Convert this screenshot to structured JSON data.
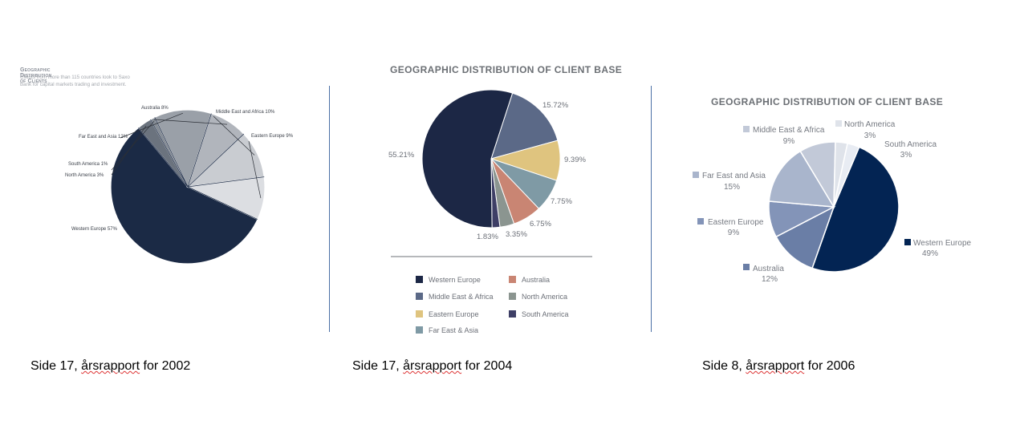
{
  "captions": {
    "c2002_pre": "Side 17, ",
    "c2002_word": "årsrapport",
    "c2002_post": " for 2002",
    "c2004_pre": "Side 17, ",
    "c2004_word": "årsrapport",
    "c2004_post": " for 2004",
    "c2006_pre": "Side 8, ",
    "c2006_word": "årsrapport",
    "c2006_post": " for 2006"
  },
  "chart_data": [
    {
      "type": "pie",
      "title": "Geographic Distribution of Clients",
      "subtitle": "Clients from more than 115 countries look to Saxo Bank for capital markets trading and investment.",
      "slices": [
        {
          "label": "Western Europe 57%",
          "value": 57,
          "color": "#1b2a45"
        },
        {
          "label": "North America 3%",
          "value": 3,
          "color": "#6b737e"
        },
        {
          "label": "South America 1%",
          "value": 1,
          "color": "#868d96"
        },
        {
          "label": "Far East and Asia 12%",
          "value": 12,
          "color": "#9aa0a8"
        },
        {
          "label": "Australia 8%",
          "value": 8,
          "color": "#b1b5bc"
        },
        {
          "label": "Middle East and Africa 10%",
          "value": 10,
          "color": "#c9ccd1"
        },
        {
          "label": "Eastern Europe 9%",
          "value": 9,
          "color": "#dcdee2"
        }
      ]
    },
    {
      "type": "pie",
      "title": "GEOGRAPHIC DISTRIBUTION OF CLIENT BASE",
      "slices": [
        {
          "name": "Western Europe",
          "label": "55.21%",
          "value": 55.21,
          "color": "#1c2745"
        },
        {
          "name": "Middle East & Africa",
          "label": "15.72%",
          "value": 15.72,
          "color": "#5b6987"
        },
        {
          "name": "Eastern Europe",
          "label": "9.39%",
          "value": 9.39,
          "color": "#dfc47f"
        },
        {
          "name": "Far East & Asia",
          "label": "7.75%",
          "value": 7.75,
          "color": "#7f9aa5"
        },
        {
          "name": "Australia",
          "label": "6.75%",
          "value": 6.75,
          "color": "#c98573"
        },
        {
          "name": "North America",
          "label": "3.35%",
          "value": 3.35,
          "color": "#8b9590"
        },
        {
          "name": "South America",
          "label": "1.83%",
          "value": 1.83,
          "color": "#3e3f66"
        }
      ],
      "legend": [
        "Western Europe",
        "Australia",
        "Middle East & Africa",
        "North America",
        "Eastern Europe",
        "South America",
        "Far East & Asia"
      ]
    },
    {
      "type": "pie",
      "title": "GEOGRAPHIC DISTRIBUTION OF CLIENT BASE",
      "slices": [
        {
          "name": "Western Europe",
          "pct": "49%",
          "value": 49,
          "color": "#032453"
        },
        {
          "name": "Australia",
          "pct": "12%",
          "value": 12,
          "color": "#6a7ea6"
        },
        {
          "name": "Eastern Europe",
          "pct": "9%",
          "value": 9,
          "color": "#8394b8"
        },
        {
          "name": "Far East and Asia",
          "pct": "15%",
          "value": 15,
          "color": "#a9b5cc"
        },
        {
          "name": "Middle East & Africa",
          "pct": "9%",
          "value": 9,
          "color": "#c2c9d8"
        },
        {
          "name": "North America",
          "pct": "3%",
          "value": 3,
          "color": "#dfe3ea"
        },
        {
          "name": "South America",
          "pct": "3%",
          "value": 3,
          "color": "#e8ecf3"
        }
      ]
    }
  ]
}
